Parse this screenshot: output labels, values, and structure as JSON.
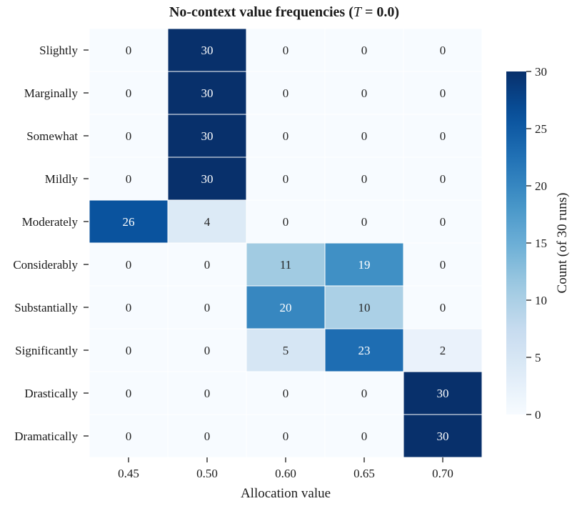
{
  "chart_data": {
    "type": "heatmap",
    "title": "No-context value frequencies",
    "title_param": "T",
    "title_value": "0.0",
    "xlabel": "Allocation value",
    "ylabel": "",
    "x_categories": [
      "0.45",
      "0.50",
      "0.60",
      "0.65",
      "0.70"
    ],
    "y_categories": [
      "Slightly",
      "Marginally",
      "Somewhat",
      "Mildly",
      "Moderately",
      "Considerably",
      "Substantially",
      "Significantly",
      "Drastically",
      "Dramatically"
    ],
    "values": [
      [
        0,
        30,
        0,
        0,
        0
      ],
      [
        0,
        30,
        0,
        0,
        0
      ],
      [
        0,
        30,
        0,
        0,
        0
      ],
      [
        0,
        30,
        0,
        0,
        0
      ],
      [
        26,
        4,
        0,
        0,
        0
      ],
      [
        0,
        0,
        11,
        19,
        0
      ],
      [
        0,
        0,
        20,
        10,
        0
      ],
      [
        0,
        0,
        5,
        23,
        2
      ],
      [
        0,
        0,
        0,
        0,
        30
      ],
      [
        0,
        0,
        0,
        0,
        30
      ]
    ],
    "colorbar": {
      "label": "Count (of 30 runs)",
      "range": [
        0,
        30
      ],
      "ticks": [
        "0",
        "5",
        "10",
        "15",
        "20",
        "25",
        "30"
      ],
      "colormap": "Blues",
      "low_color": "#f7fbff",
      "high_color": "#08306b"
    },
    "cell_separator_color": "#ffffff",
    "grid": false
  }
}
